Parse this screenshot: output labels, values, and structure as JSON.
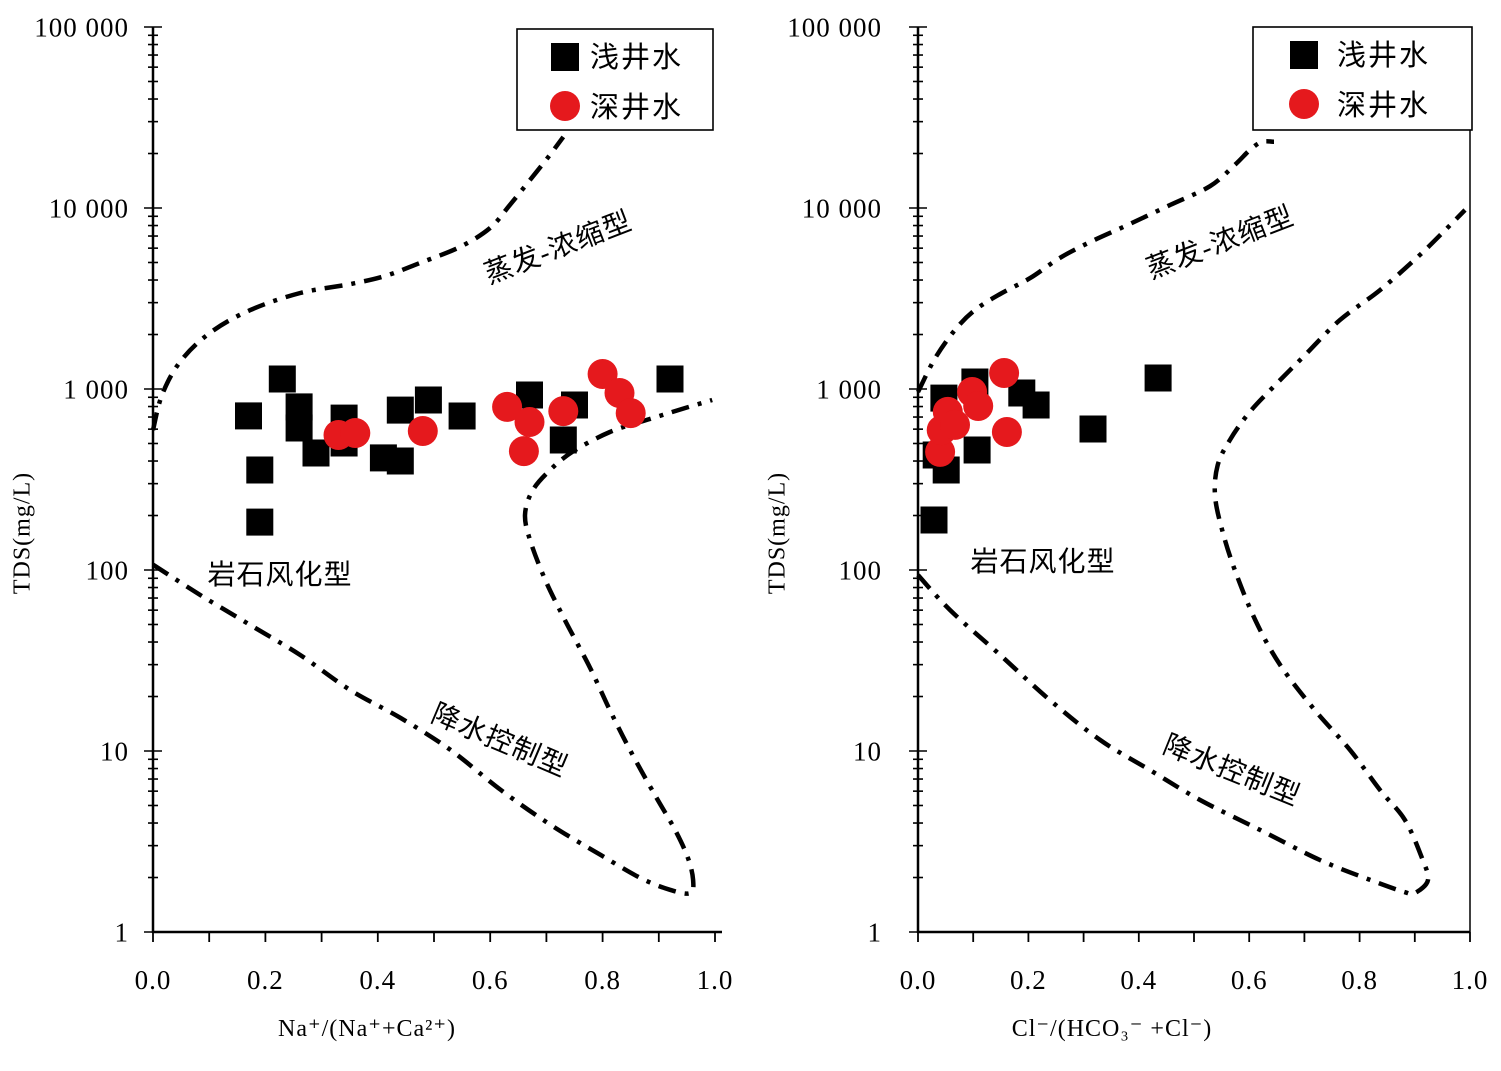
{
  "chart_data": [
    {
      "type": "scatter",
      "xlabel": "Na⁺/(Na⁺+Ca²⁺)",
      "ylabel": "TDS(mg/L)",
      "xlim": [
        0,
        1
      ],
      "ylim": [
        1,
        100000
      ],
      "yscale": "log",
      "grid": false,
      "legend_position": "top-right",
      "x_ticks": [
        {
          "value": 0,
          "label": "0.0"
        },
        {
          "value": 0.2,
          "label": "0.2"
        },
        {
          "value": 0.4,
          "label": "0.4"
        },
        {
          "value": 0.6,
          "label": "0.6"
        },
        {
          "value": 0.8,
          "label": "0.8"
        },
        {
          "value": 1.0,
          "label": "1.0"
        }
      ],
      "y_ticks": [
        {
          "value": 100000,
          "label": "100 000"
        },
        {
          "value": 10000,
          "label": "10 000"
        },
        {
          "value": 1000,
          "label": "1 000"
        },
        {
          "value": 100,
          "label": "100"
        },
        {
          "value": 10,
          "label": "10"
        },
        {
          "value": 1,
          "label": "1"
        }
      ],
      "series": [
        {
          "name": "浅井水",
          "marker": "square",
          "color": "#000000",
          "points": [
            [
              0.17,
              710
            ],
            [
              0.23,
              1135
            ],
            [
              0.26,
              796
            ],
            [
              0.26,
              609
            ],
            [
              0.19,
              357
            ],
            [
              0.19,
              184
            ],
            [
              0.29,
              443
            ],
            [
              0.34,
              691
            ],
            [
              0.34,
              503
            ],
            [
              0.41,
              416
            ],
            [
              0.44,
              765
            ],
            [
              0.44,
              400
            ],
            [
              0.49,
              869
            ],
            [
              0.55,
              709
            ],
            [
              0.67,
              926
            ],
            [
              0.73,
              523
            ],
            [
              0.75,
              816
            ],
            [
              0.92,
              1135
            ]
          ]
        },
        {
          "name": "深井水",
          "marker": "circle",
          "color": "#e5191d",
          "points": [
            [
              0.33,
              557
            ],
            [
              0.36,
              571
            ],
            [
              0.48,
              586
            ],
            [
              0.63,
              796
            ],
            [
              0.67,
              657
            ],
            [
              0.66,
              454
            ],
            [
              0.73,
              755
            ],
            [
              0.8,
              1210
            ],
            [
              0.83,
              950
            ],
            [
              0.85,
              736
            ]
          ]
        }
      ],
      "annotations": {
        "evaporation": "蒸发-浓缩型",
        "rock_weathering": "岩石风化型",
        "precipitation": "降水控制型"
      },
      "boundary_curves": [
        {
          "line_style": "dash-dot",
          "color": "#000000",
          "points": [
            [
              0,
              593
            ],
            [
              0.016,
              926
            ],
            [
              0.048,
              1410
            ],
            [
              0.101,
              2040
            ],
            [
              0.173,
              2730
            ],
            [
              0.262,
              3390
            ],
            [
              0.351,
              3800
            ],
            [
              0.413,
              4210
            ],
            [
              0.475,
              4970
            ],
            [
              0.546,
              6090
            ],
            [
              0.6,
              7760
            ],
            [
              0.635,
              10400
            ],
            [
              0.671,
              14300
            ],
            [
              0.706,
              19600
            ],
            [
              0.73,
              24700
            ]
          ]
        },
        {
          "line_style": "dash-dot",
          "color": "#000000",
          "points": [
            [
              0,
              107
            ],
            [
              0.084,
              72.8
            ],
            [
              0.173,
              49.7
            ],
            [
              0.262,
              33.9
            ],
            [
              0.351,
              21.7
            ],
            [
              0.441,
              15.2
            ],
            [
              0.53,
              10.1
            ],
            [
              0.619,
              6.09
            ],
            [
              0.708,
              3.9
            ],
            [
              0.797,
              2.66
            ],
            [
              0.867,
              1.99
            ],
            [
              0.92,
              1.71
            ],
            [
              0.956,
              1.64
            ],
            [
              0.961,
              1.94
            ],
            [
              0.952,
              2.56
            ],
            [
              0.929,
              3.66
            ],
            [
              0.893,
              5.71
            ],
            [
              0.849,
              10.1
            ],
            [
              0.813,
              16.8
            ],
            [
              0.778,
              28.7
            ],
            [
              0.733,
              52.9
            ],
            [
              0.698,
              88
            ],
            [
              0.671,
              146
            ],
            [
              0.662,
              201
            ],
            [
              0.674,
              270
            ],
            [
              0.703,
              348
            ],
            [
              0.746,
              449
            ],
            [
              0.813,
              579
            ],
            [
              0.884,
              683
            ],
            [
              0.947,
              785
            ],
            [
              0.995,
              869
            ]
          ]
        }
      ]
    },
    {
      "type": "scatter",
      "xlabel": "Cl⁻/(HCO₃⁻ +Cl⁻)",
      "ylabel": "TDS(mg/L)",
      "xlim": [
        0,
        1
      ],
      "ylim": [
        1,
        100000
      ],
      "yscale": "log",
      "grid": false,
      "legend_position": "top-right",
      "x_ticks": [
        {
          "value": 0,
          "label": "0.0"
        },
        {
          "value": 0.2,
          "label": "0.2"
        },
        {
          "value": 0.4,
          "label": "0.4"
        },
        {
          "value": 0.6,
          "label": "0.6"
        },
        {
          "value": 0.8,
          "label": "0.8"
        },
        {
          "value": 1.0,
          "label": "1.0"
        }
      ],
      "y_ticks": [
        {
          "value": 100000,
          "label": "100 000"
        },
        {
          "value": 10000,
          "label": "10 000"
        },
        {
          "value": 1000,
          "label": "1 000"
        },
        {
          "value": 100,
          "label": "100"
        },
        {
          "value": 10,
          "label": "10"
        },
        {
          "value": 1,
          "label": "1"
        }
      ],
      "series": [
        {
          "name": "浅井水",
          "marker": "square",
          "color": "#000000",
          "points": [
            [
              0.047,
              891
            ],
            [
              0.103,
              1093
            ],
            [
              0.107,
              460
            ],
            [
              0.051,
              357
            ],
            [
              0.029,
              189
            ],
            [
              0.188,
              950
            ],
            [
              0.214,
              816
            ],
            [
              0.317,
              601
            ],
            [
              0.435,
              1150
            ],
            [
              0.033,
              432
            ]
          ]
        },
        {
          "name": "深井水",
          "marker": "circle",
          "color": "#e5191d",
          "points": [
            [
              0.04,
              449
            ],
            [
              0.043,
              593
            ],
            [
              0.054,
              747
            ],
            [
              0.067,
              633
            ],
            [
              0.098,
              962
            ],
            [
              0.109,
              806
            ],
            [
              0.156,
              1225
            ],
            [
              0.161,
              579
            ]
          ]
        }
      ],
      "annotations": {
        "evaporation": "蒸发-浓缩型",
        "rock_weathering": "岩石风化型",
        "precipitation": "降水控制型"
      },
      "boundary_curves": [
        {
          "line_style": "dash-dot",
          "color": "#000000",
          "points": [
            [
              0,
              962
            ],
            [
              0.031,
              1480
            ],
            [
              0.067,
              2120
            ],
            [
              0.103,
              2730
            ],
            [
              0.149,
              3350
            ],
            [
              0.203,
              4100
            ],
            [
              0.257,
              5300
            ],
            [
              0.312,
              6490
            ],
            [
              0.384,
              8170
            ],
            [
              0.457,
              10400
            ],
            [
              0.529,
              13200
            ],
            [
              0.574,
              17300
            ],
            [
              0.601,
              20900
            ],
            [
              0.623,
              23200
            ],
            [
              0.645,
              23200
            ]
          ]
        },
        {
          "line_style": "dash-dot",
          "color": "#000000",
          "points": [
            [
              0,
              93.8
            ],
            [
              0.058,
              60.1
            ],
            [
              0.149,
              33.9
            ],
            [
              0.239,
              19.1
            ],
            [
              0.33,
              11.5
            ],
            [
              0.42,
              7.85
            ],
            [
              0.511,
              5.36
            ],
            [
              0.62,
              3.66
            ],
            [
              0.728,
              2.5
            ],
            [
              0.819,
              1.94
            ],
            [
              0.882,
              1.66
            ],
            [
              0.9,
              1.64
            ],
            [
              0.924,
              1.94
            ],
            [
              0.913,
              2.56
            ],
            [
              0.882,
              4.16
            ],
            [
              0.837,
              6.09
            ],
            [
              0.783,
              10.1
            ],
            [
              0.719,
              16.8
            ],
            [
              0.656,
              29.9
            ],
            [
              0.611,
              52.9
            ],
            [
              0.574,
              100
            ],
            [
              0.551,
              166
            ],
            [
              0.538,
              259
            ],
            [
              0.543,
              380
            ],
            [
              0.565,
              523
            ],
            [
              0.601,
              747
            ],
            [
              0.647,
              1050
            ],
            [
              0.701,
              1540
            ],
            [
              0.764,
              2400
            ],
            [
              0.837,
              3520
            ],
            [
              0.909,
              5500
            ],
            [
              0.955,
              7550
            ],
            [
              0.991,
              9750
            ]
          ]
        }
      ]
    }
  ]
}
